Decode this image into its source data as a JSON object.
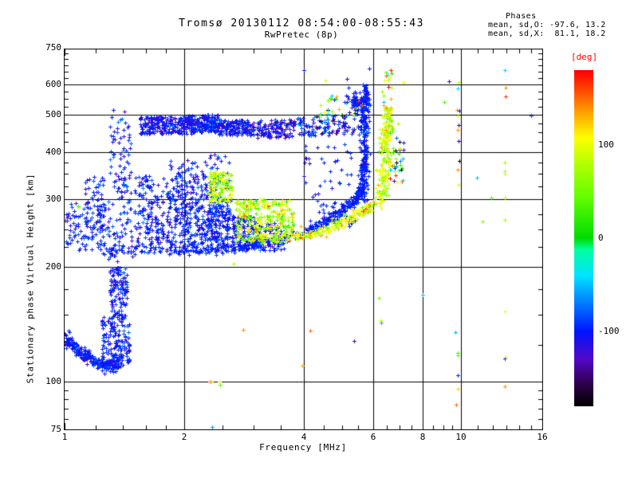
{
  "header": {
    "title": "Tromsø 20130112 08:54:00-08:55:43",
    "subtitle": "RwPretec (8p)"
  },
  "phase_stats": {
    "heading": "Phases",
    "line_o": "mean, sd,O: -97.6, 13.2",
    "line_x": "mean, sd,X:  81.1, 18.2"
  },
  "axes": {
    "x_title": "Frequency [MHz]",
    "y_title": "Stationary phase Virtual Height [km]"
  },
  "colorbar": {
    "unit": "[deg]",
    "unit_color": "#ff0000",
    "ticks": [
      100,
      0,
      -100
    ],
    "deg_min": -180,
    "deg_max": 180
  },
  "layout_colors": {
    "background": "#ffffff",
    "axis": "#000000"
  },
  "chart_data": {
    "type": "scatter",
    "title": "Tromsø 20130112 08:54:00-08:55:43",
    "subtitle": "RwPretec (8p)",
    "xlabel": "Frequency [MHz]",
    "ylabel": "Stationary phase Virtual Height [km]",
    "x_scale": "log",
    "y_scale": "log",
    "xlim": [
      1,
      16
    ],
    "ylim": [
      75,
      742
    ],
    "grid": true,
    "marker": "plus",
    "x_tick_labels": [
      1,
      2,
      4,
      6,
      8,
      10,
      16
    ],
    "x_gridlines": [
      2,
      4,
      6,
      8,
      10
    ],
    "x_minor_ticks": [
      1.2,
      1.4,
      1.6,
      1.8,
      2.5,
      3,
      3.5,
      4.5,
      5,
      5.5,
      6.5,
      7,
      7.5,
      8.5,
      9,
      9.5,
      11,
      12,
      13,
      14,
      15
    ],
    "y_tick_labels": [
      750,
      600,
      500,
      400,
      300,
      200,
      100,
      75
    ],
    "y_gridlines": [
      600,
      500,
      400,
      300,
      200,
      100
    ],
    "y_minor_ticks": [
      725,
      700,
      675,
      650,
      625,
      575,
      550,
      525,
      475,
      450,
      425,
      375,
      350,
      325,
      275,
      250,
      225,
      175,
      150,
      125,
      95,
      90,
      85,
      80
    ],
    "colormap_stops": [
      [
        -180,
        "#000000"
      ],
      [
        -155,
        "#300050"
      ],
      [
        -130,
        "#5408c8"
      ],
      [
        -100,
        "#0014ff"
      ],
      [
        -65,
        "#008cff"
      ],
      [
        -40,
        "#00e4ff"
      ],
      [
        -12,
        "#00ff9c"
      ],
      [
        0,
        "#00dc00"
      ],
      [
        45,
        "#64ff00"
      ],
      [
        80,
        "#b4ff00"
      ],
      [
        108,
        "#ffff00"
      ],
      [
        138,
        "#ff9600"
      ],
      [
        162,
        "#ff3c00"
      ],
      [
        180,
        "#ff0000"
      ]
    ],
    "clusters": [
      {
        "name": "e-base-trace",
        "type": "curve",
        "pts": [
          [
            1.0,
            130
          ],
          [
            1.08,
            122
          ],
          [
            1.2,
            112
          ],
          [
            1.3,
            110
          ],
          [
            1.38,
            113
          ]
        ],
        "n": 300,
        "jx": 3,
        "jy": 4,
        "deg": -100,
        "sd": 12
      },
      {
        "name": "e-plume-low",
        "type": "blob",
        "f": [
          1.24,
          1.46
        ],
        "h": [
          112,
          150
        ],
        "n": 160,
        "deg": -100,
        "sd": 12
      },
      {
        "name": "e-plume-mid",
        "type": "blob",
        "f": [
          1.3,
          1.44
        ],
        "h": [
          150,
          200
        ],
        "n": 110,
        "deg": -102,
        "sd": 12
      },
      {
        "name": "e-plume-top",
        "type": "blob",
        "f": [
          1.28,
          1.48
        ],
        "h": [
          205,
          330
        ],
        "n": 80,
        "deg": -100,
        "sd": 18
      },
      {
        "name": "e-plume-high",
        "type": "blob",
        "f": [
          1.3,
          1.47
        ],
        "h": [
          330,
          520
        ],
        "n": 60,
        "deg": -100,
        "sd": 20
      },
      {
        "name": "upper-band-1",
        "type": "blob",
        "f": [
          1.55,
          2.1
        ],
        "h": [
          445,
          495
        ],
        "n": 230,
        "deg": -105,
        "sd": 14
      },
      {
        "name": "upper-band-2",
        "type": "blob",
        "f": [
          2.05,
          2.45
        ],
        "h": [
          450,
          500
        ],
        "n": 190,
        "deg": -103,
        "sd": 14
      },
      {
        "name": "upper-band-3",
        "type": "blob",
        "f": [
          2.45,
          3.0
        ],
        "h": [
          442,
          485
        ],
        "n": 170,
        "deg": -105,
        "sd": 16
      },
      {
        "name": "upper-band-4",
        "type": "blob",
        "f": [
          3.05,
          3.8
        ],
        "h": [
          435,
          488
        ],
        "n": 130,
        "deg": -118,
        "sd": 22
      },
      {
        "name": "upper-band-5",
        "type": "blob",
        "f": [
          3.85,
          4.65
        ],
        "h": [
          440,
          495
        ],
        "n": 80,
        "deg": -95,
        "sd": 28
      },
      {
        "name": "upper-band-6",
        "type": "blob",
        "f": [
          4.7,
          5.45
        ],
        "h": [
          445,
          500
        ],
        "n": 45,
        "deg": -110,
        "sd": 28
      },
      {
        "name": "upper-mixed",
        "type": "blob",
        "f": [
          4.3,
          5.5
        ],
        "h": [
          497,
          565
        ],
        "n": 30,
        "deg_range": [
          -180,
          180
        ]
      },
      {
        "name": "o-hook-top",
        "type": "curve",
        "pts": [
          [
            5.22,
            555
          ],
          [
            5.45,
            545
          ],
          [
            5.6,
            520
          ],
          [
            5.68,
            480
          ],
          [
            5.7,
            455
          ]
        ],
        "n": 90,
        "jx": 4,
        "jy": 6,
        "deg": -100,
        "sd": 10
      },
      {
        "name": "o-asymptote",
        "type": "curve",
        "pts": [
          [
            5.62,
            300
          ],
          [
            5.66,
            345
          ],
          [
            5.68,
            400
          ],
          [
            5.7,
            460
          ],
          [
            5.72,
            530
          ],
          [
            5.7,
            592
          ]
        ],
        "n": 240,
        "jx": 3,
        "jy": 5,
        "deg": -99,
        "sd": 9
      },
      {
        "name": "o-trace",
        "type": "curve",
        "pts": [
          [
            1.09,
            224
          ],
          [
            1.6,
            221
          ],
          [
            2.2,
            220
          ],
          [
            2.8,
            224
          ],
          [
            3.2,
            232
          ],
          [
            4.0,
            246
          ],
          [
            4.5,
            262
          ],
          [
            5.0,
            280
          ],
          [
            5.3,
            295
          ],
          [
            5.5,
            310
          ],
          [
            5.6,
            322
          ]
        ],
        "n": 420,
        "jx": 2,
        "jy": 3,
        "deg": -98,
        "sd": 8
      },
      {
        "name": "f-cloud-left",
        "type": "blob",
        "f": [
          1.0,
          1.25
        ],
        "h": [
          228,
          295
        ],
        "n": 90,
        "deg": -100,
        "sd": 13
      },
      {
        "name": "f-cloud-col1",
        "type": "blob",
        "f": [
          1.12,
          1.27
        ],
        "h": [
          250,
          350
        ],
        "n": 60,
        "deg": -100,
        "sd": 14
      },
      {
        "name": "f-cloud-col2",
        "type": "blob",
        "f": [
          1.5,
          1.78
        ],
        "h": [
          225,
          345
        ],
        "n": 150,
        "deg": -100,
        "sd": 13
      },
      {
        "name": "f-cloud-col3",
        "type": "blob",
        "f": [
          1.8,
          2.3
        ],
        "h": [
          222,
          335
        ],
        "n": 290,
        "deg": -100,
        "sd": 13
      },
      {
        "name": "f-cloud-col3-top",
        "type": "blob",
        "f": [
          1.82,
          2.28
        ],
        "h": [
          335,
          382
        ],
        "n": 45,
        "deg": -100,
        "sd": 16
      },
      {
        "name": "f-cloud-col4",
        "type": "blob",
        "f": [
          2.3,
          2.62
        ],
        "h": [
          222,
          300
        ],
        "n": 170,
        "deg": -100,
        "sd": 13
      },
      {
        "name": "f-cloud-col4-top",
        "type": "blob",
        "f": [
          2.32,
          2.6
        ],
        "h": [
          300,
          395
        ],
        "n": 35,
        "deg": -100,
        "sd": 18
      },
      {
        "name": "f-cloud-col5",
        "type": "blob",
        "f": [
          2.64,
          3.05
        ],
        "h": [
          222,
          272
        ],
        "n": 130,
        "deg": -101,
        "sd": 13
      },
      {
        "name": "f-cloud-col6",
        "type": "blob",
        "f": [
          3.05,
          3.6
        ],
        "h": [
          220,
          260
        ],
        "n": 90,
        "deg": -100,
        "sd": 14
      },
      {
        "name": "f-sparse-upper",
        "type": "blob",
        "f": [
          4.0,
          5.3
        ],
        "h": [
          300,
          420
        ],
        "n": 35,
        "deg": -100,
        "sd": 16
      },
      {
        "name": "f-sparse-mid",
        "type": "blob",
        "f": [
          4.1,
          5.4
        ],
        "h": [
          255,
          300
        ],
        "n": 40,
        "deg": -100,
        "sd": 15
      },
      {
        "name": "x-column",
        "type": "blob",
        "f": [
          2.3,
          2.65
        ],
        "h": [
          295,
          355
        ],
        "n": 120,
        "deg": 78,
        "sd": 26
      },
      {
        "name": "x-cloud",
        "type": "blob",
        "f": [
          2.7,
          3.78
        ],
        "h": [
          232,
          300
        ],
        "n": 270,
        "deg": 80,
        "sd": 30
      },
      {
        "name": "x-trace",
        "type": "curve",
        "pts": [
          [
            3.1,
            236
          ],
          [
            3.9,
            243
          ],
          [
            4.42,
            247
          ],
          [
            5.08,
            262
          ],
          [
            5.58,
            278
          ],
          [
            5.95,
            292
          ]
        ],
        "n": 200,
        "jx": 3,
        "jy": 3,
        "deg": 95,
        "sd": 30
      },
      {
        "name": "x-asymptote",
        "type": "curve",
        "pts": [
          [
            6.28,
            298
          ],
          [
            6.38,
            345
          ],
          [
            6.45,
            410
          ],
          [
            6.5,
            470
          ],
          [
            6.55,
            512
          ]
        ],
        "n": 190,
        "jx": 4,
        "jy": 5,
        "deg": 85,
        "sd": 22
      },
      {
        "name": "x-asym-top",
        "type": "blob",
        "f": [
          6.3,
          6.68
        ],
        "h": [
          515,
          645
        ],
        "n": 18,
        "deg": 95,
        "sd": 55
      },
      {
        "name": "x-flank",
        "type": "blob",
        "f": [
          6.6,
          7.15
        ],
        "h": [
          330,
          440
        ],
        "n": 30,
        "deg_range": [
          -180,
          180
        ]
      },
      {
        "name": "green-wisp",
        "type": "blob",
        "f": [
          3.5,
          3.78
        ],
        "h": [
          240,
          272
        ],
        "n": 22,
        "deg": 55,
        "sd": 35
      }
    ],
    "sparse_points": [
      [
        4.0,
        655,
        -100
      ],
      [
        4.54,
        615,
        100
      ],
      [
        5.15,
        620,
        -100
      ],
      [
        5.2,
        590,
        -95
      ],
      [
        5.85,
        662,
        -100
      ],
      [
        5.5,
        542,
        170
      ],
      [
        5.62,
        530,
        150
      ],
      [
        6.63,
        655,
        170
      ],
      [
        7.16,
        610,
        100
      ],
      [
        9.3,
        612,
        -140
      ],
      [
        9.85,
        608,
        85
      ],
      [
        9.8,
        585,
        -45
      ],
      [
        12.9,
        655,
        -45
      ],
      [
        12.95,
        588,
        140
      ],
      [
        12.95,
        560,
        165
      ],
      [
        9.05,
        540,
        35
      ],
      [
        9.75,
        515,
        140
      ],
      [
        9.9,
        512,
        -100
      ],
      [
        9.8,
        497,
        95
      ],
      [
        15.0,
        497,
        -90
      ],
      [
        9.85,
        470,
        -140
      ],
      [
        9.8,
        457,
        140
      ],
      [
        9.85,
        428,
        -145
      ],
      [
        9.9,
        379,
        -170
      ],
      [
        9.8,
        360,
        140
      ],
      [
        9.85,
        328,
        95
      ],
      [
        10.95,
        343,
        -50
      ],
      [
        12.9,
        375,
        70
      ],
      [
        12.9,
        356,
        78
      ],
      [
        12.9,
        350,
        85
      ],
      [
        11.9,
        304,
        40
      ],
      [
        12.9,
        303,
        95
      ],
      [
        11.3,
        263,
        60
      ],
      [
        12.9,
        265,
        75
      ],
      [
        8.0,
        169,
        -50
      ],
      [
        6.2,
        166,
        55
      ],
      [
        12.9,
        153,
        100
      ],
      [
        4.16,
        136,
        150
      ],
      [
        5.37,
        128,
        -140
      ],
      [
        6.26,
        145,
        100
      ],
      [
        6.28,
        143,
        -55
      ],
      [
        9.65,
        135,
        -55
      ],
      [
        9.78,
        119,
        30
      ],
      [
        9.78,
        117,
        40
      ],
      [
        12.9,
        115,
        -100
      ],
      [
        12.95,
        116,
        95
      ],
      [
        9.78,
        104,
        -95
      ],
      [
        9.78,
        96,
        120
      ],
      [
        9.7,
        87,
        150
      ],
      [
        12.9,
        97,
        140
      ],
      [
        3.97,
        110,
        130
      ],
      [
        2.32,
        100,
        140
      ],
      [
        2.34,
        100,
        130
      ],
      [
        2.45,
        100,
        100
      ],
      [
        2.47,
        98,
        40
      ],
      [
        1.08,
        288,
        20
      ],
      [
        2.82,
        137,
        140
      ],
      [
        2.67,
        204,
        75
      ],
      [
        2.35,
        76,
        -60
      ]
    ]
  }
}
